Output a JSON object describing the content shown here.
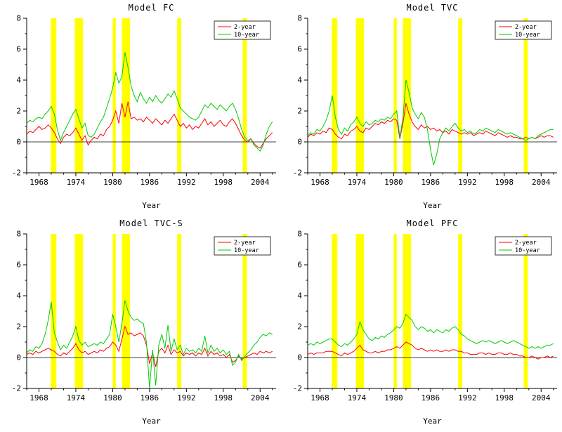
{
  "figure": {
    "xlabel": "Year"
  },
  "colors": {
    "band": "#ffff00",
    "axis": "#000000",
    "two_year": "#ff0000",
    "ten_year": "#00cc00",
    "background": "#ffffff"
  },
  "chart_data": [
    {
      "type": "line",
      "title": "Model FC",
      "xlabel": "Year",
      "ylabel": "",
      "xlim": [
        1966,
        2006.6
      ],
      "ylim": [
        -2,
        8
      ],
      "xticks": [
        1968,
        1974,
        1980,
        1986,
        1992,
        1998,
        2004
      ],
      "yticks": [
        -2,
        0,
        2,
        4,
        6,
        8
      ],
      "legend_position": "top-right",
      "recession_bands": [
        [
          1969.92,
          1970.83
        ],
        [
          1973.83,
          1975.17
        ],
        [
          1980.0,
          1980.5
        ],
        [
          1981.5,
          1982.83
        ],
        [
          1990.5,
          1991.17
        ],
        [
          2001.17,
          2001.83
        ]
      ],
      "x_start": 1966,
      "x_step": 0.5,
      "series": [
        {
          "name": "2-year",
          "color": "#ff0000",
          "values": [
            0.5,
            0.7,
            0.6,
            0.8,
            1.0,
            0.8,
            0.9,
            1.1,
            0.9,
            0.6,
            0.2,
            -0.1,
            0.3,
            0.5,
            0.4,
            0.6,
            0.9,
            0.5,
            0.1,
            0.4,
            -0.2,
            0.1,
            0.3,
            0.2,
            0.5,
            0.4,
            0.8,
            1.0,
            1.4,
            2.0,
            1.2,
            2.5,
            1.6,
            2.6,
            1.5,
            1.6,
            1.4,
            1.5,
            1.3,
            1.6,
            1.4,
            1.2,
            1.5,
            1.3,
            1.1,
            1.4,
            1.2,
            1.5,
            1.8,
            1.4,
            1.0,
            1.2,
            0.9,
            1.1,
            0.8,
            1.0,
            0.9,
            1.2,
            1.5,
            1.1,
            1.3,
            1.0,
            1.2,
            1.4,
            1.1,
            1.0,
            1.3,
            1.5,
            1.2,
            0.8,
            0.4,
            0.1,
            0.0,
            0.2,
            -0.1,
            -0.3,
            -0.4,
            -0.1,
            0.2,
            0.4,
            0.6
          ]
        },
        {
          "name": "10-year",
          "color": "#00cc00",
          "values": [
            1.2,
            1.4,
            1.3,
            1.5,
            1.6,
            1.5,
            1.8,
            2.0,
            2.3,
            1.8,
            0.8,
            0.1,
            0.6,
            1.0,
            1.4,
            1.8,
            2.1,
            1.5,
            0.9,
            1.2,
            0.4,
            0.3,
            0.5,
            0.9,
            1.3,
            1.6,
            2.2,
            2.8,
            3.5,
            4.5,
            3.8,
            4.2,
            5.8,
            4.8,
            3.6,
            3.0,
            2.6,
            3.2,
            2.8,
            2.5,
            2.9,
            2.6,
            3.0,
            2.7,
            2.5,
            2.8,
            3.1,
            2.9,
            3.3,
            2.8,
            2.2,
            2.0,
            1.8,
            1.6,
            1.5,
            1.4,
            1.6,
            2.0,
            2.4,
            2.2,
            2.5,
            2.3,
            2.1,
            2.4,
            2.2,
            2.0,
            2.3,
            2.5,
            2.1,
            1.5,
            0.8,
            0.3,
            0.1,
            0.2,
            -0.2,
            -0.4,
            -0.6,
            -0.2,
            0.5,
            1.0,
            1.3
          ]
        }
      ]
    },
    {
      "type": "line",
      "title": "Model TVC",
      "xlabel": "Year",
      "ylabel": "",
      "xlim": [
        1966,
        2006.6
      ],
      "ylim": [
        -2,
        8
      ],
      "xticks": [
        1968,
        1974,
        1980,
        1986,
        1992,
        1998,
        2004
      ],
      "yticks": [
        -2,
        0,
        2,
        4,
        6,
        8
      ],
      "legend_position": "top-right",
      "recession_bands": [
        [
          1969.92,
          1970.83
        ],
        [
          1973.83,
          1975.17
        ],
        [
          1980.0,
          1980.5
        ],
        [
          1981.5,
          1982.83
        ],
        [
          1990.5,
          1991.17
        ],
        [
          2001.17,
          2001.83
        ]
      ],
      "x_start": 1966,
      "x_step": 0.5,
      "series": [
        {
          "name": "2-year",
          "color": "#ff0000",
          "values": [
            0.3,
            0.5,
            0.4,
            0.6,
            0.5,
            0.7,
            0.6,
            0.9,
            0.8,
            0.5,
            0.3,
            0.2,
            0.5,
            0.4,
            0.7,
            0.8,
            1.0,
            0.7,
            0.6,
            0.9,
            0.8,
            1.0,
            1.2,
            1.1,
            1.3,
            1.2,
            1.4,
            1.3,
            1.5,
            1.4,
            0.2,
            1.2,
            2.5,
            1.8,
            1.3,
            1.0,
            0.8,
            1.1,
            0.9,
            1.0,
            0.8,
            0.9,
            0.7,
            0.8,
            0.6,
            0.7,
            0.5,
            0.8,
            0.7,
            0.6,
            0.5,
            0.6,
            0.5,
            0.6,
            0.4,
            0.5,
            0.6,
            0.5,
            0.7,
            0.6,
            0.5,
            0.4,
            0.6,
            0.5,
            0.4,
            0.3,
            0.4,
            0.3,
            0.3,
            0.2,
            0.2,
            0.3,
            0.2,
            0.3,
            0.2,
            0.3,
            0.4,
            0.3,
            0.4,
            0.4,
            0.3
          ]
        },
        {
          "name": "10-year",
          "color": "#00cc00",
          "values": [
            0.4,
            0.6,
            0.5,
            0.8,
            0.7,
            1.0,
            1.4,
            2.0,
            3.0,
            1.6,
            0.8,
            0.5,
            0.9,
            0.7,
            1.1,
            1.3,
            1.6,
            1.2,
            1.0,
            1.3,
            1.1,
            1.2,
            1.4,
            1.3,
            1.5,
            1.4,
            1.6,
            1.5,
            1.8,
            2.0,
            0.3,
            1.5,
            4.0,
            3.2,
            2.2,
            1.8,
            1.5,
            1.9,
            1.6,
            0.8,
            -0.5,
            -1.5,
            -0.8,
            0.2,
            0.6,
            0.9,
            0.7,
            1.0,
            1.2,
            0.9,
            0.7,
            0.8,
            0.6,
            0.7,
            0.5,
            0.6,
            0.8,
            0.7,
            0.9,
            0.8,
            0.7,
            0.6,
            0.8,
            0.7,
            0.6,
            0.5,
            0.6,
            0.5,
            0.4,
            0.3,
            0.2,
            0.1,
            0.2,
            0.3,
            0.2,
            0.4,
            0.5,
            0.6,
            0.7,
            0.8,
            0.8
          ]
        }
      ]
    },
    {
      "type": "line",
      "title": "Model TVC-S",
      "xlabel": "Year",
      "ylabel": "",
      "xlim": [
        1966,
        2006.6
      ],
      "ylim": [
        -2,
        8
      ],
      "xticks": [
        1968,
        1974,
        1980,
        1986,
        1992,
        1998,
        2004
      ],
      "yticks": [
        -2,
        0,
        2,
        4,
        6,
        8
      ],
      "legend_position": "top-right",
      "recession_bands": [
        [
          1969.92,
          1970.83
        ],
        [
          1973.83,
          1975.17
        ],
        [
          1980.0,
          1980.5
        ],
        [
          1981.5,
          1982.83
        ],
        [
          1990.5,
          1991.17
        ],
        [
          2001.17,
          2001.83
        ]
      ],
      "x_start": 1966,
      "x_step": 0.5,
      "series": [
        {
          "name": "2-year",
          "color": "#ff0000",
          "values": [
            0.2,
            0.3,
            0.2,
            0.4,
            0.3,
            0.4,
            0.5,
            0.6,
            0.5,
            0.4,
            0.2,
            0.1,
            0.3,
            0.2,
            0.4,
            0.6,
            0.9,
            0.5,
            0.3,
            0.4,
            0.2,
            0.3,
            0.4,
            0.3,
            0.5,
            0.4,
            0.6,
            0.7,
            1.0,
            0.8,
            0.4,
            1.2,
            2.0,
            1.5,
            1.6,
            1.4,
            1.5,
            1.6,
            1.4,
            0.8,
            -0.4,
            0.3,
            -0.6,
            0.4,
            0.6,
            0.3,
            0.8,
            0.2,
            0.5,
            0.3,
            0.4,
            0.1,
            0.3,
            0.2,
            0.3,
            0.1,
            0.3,
            0.2,
            0.6,
            0.1,
            0.4,
            0.2,
            0.3,
            0.1,
            0.2,
            0.0,
            0.2,
            -0.3,
            -0.2,
            0.1,
            -0.1,
            0.0,
            0.1,
            0.2,
            0.3,
            0.2,
            0.4,
            0.3,
            0.4,
            0.3,
            0.4
          ]
        },
        {
          "name": "10-year",
          "color": "#00cc00",
          "values": [
            0.3,
            0.5,
            0.4,
            0.7,
            0.6,
            0.9,
            1.5,
            2.4,
            3.6,
            1.6,
            1.0,
            0.5,
            0.8,
            0.6,
            1.0,
            1.4,
            2.0,
            1.1,
            0.8,
            1.0,
            0.7,
            0.8,
            0.9,
            0.8,
            1.0,
            0.9,
            1.2,
            1.5,
            2.8,
            2.0,
            1.0,
            2.2,
            3.7,
            3.0,
            2.6,
            2.4,
            2.5,
            2.3,
            2.2,
            1.0,
            -2.0,
            0.5,
            -1.8,
            0.8,
            1.5,
            0.6,
            2.1,
            0.4,
            1.2,
            0.5,
            0.8,
            0.2,
            0.6,
            0.4,
            0.5,
            0.3,
            0.6,
            0.4,
            1.4,
            0.3,
            0.8,
            0.4,
            0.6,
            0.3,
            0.5,
            0.2,
            0.4,
            -0.5,
            -0.3,
            0.2,
            -0.2,
            0.1,
            0.3,
            0.5,
            0.8,
            1.0,
            1.3,
            1.5,
            1.4,
            1.6,
            1.5
          ]
        }
      ]
    },
    {
      "type": "line",
      "title": "Model PFC",
      "xlabel": "Year",
      "ylabel": "",
      "xlim": [
        1966,
        2006.6
      ],
      "ylim": [
        -2,
        8
      ],
      "xticks": [
        1968,
        1974,
        1980,
        1986,
        1992,
        1998,
        2004
      ],
      "yticks": [
        -2,
        0,
        2,
        4,
        6,
        8
      ],
      "legend_position": "top-right",
      "recession_bands": [
        [
          1969.92,
          1970.83
        ],
        [
          1973.83,
          1975.17
        ],
        [
          1980.0,
          1980.5
        ],
        [
          1981.5,
          1982.83
        ],
        [
          1990.5,
          1991.17
        ],
        [
          2001.17,
          2001.83
        ]
      ],
      "x_start": 1966,
      "x_step": 0.5,
      "series": [
        {
          "name": "2-year",
          "color": "#ff0000",
          "values": [
            0.2,
            0.3,
            0.2,
            0.3,
            0.3,
            0.3,
            0.4,
            0.4,
            0.4,
            0.3,
            0.2,
            0.1,
            0.3,
            0.2,
            0.3,
            0.4,
            0.6,
            0.8,
            0.5,
            0.4,
            0.3,
            0.3,
            0.4,
            0.3,
            0.4,
            0.4,
            0.5,
            0.5,
            0.6,
            0.7,
            0.6,
            0.8,
            1.0,
            0.9,
            0.8,
            0.6,
            0.5,
            0.6,
            0.5,
            0.4,
            0.5,
            0.4,
            0.5,
            0.4,
            0.4,
            0.5,
            0.4,
            0.5,
            0.5,
            0.4,
            0.4,
            0.3,
            0.3,
            0.2,
            0.2,
            0.2,
            0.3,
            0.3,
            0.2,
            0.3,
            0.2,
            0.2,
            0.3,
            0.3,
            0.2,
            0.2,
            0.3,
            0.2,
            0.2,
            0.1,
            0.1,
            0.0,
            0.0,
            0.1,
            0.0,
            -0.1,
            0.0,
            0.0,
            0.1,
            0.0,
            0.1
          ]
        },
        {
          "name": "10-year",
          "color": "#00cc00",
          "values": [
            0.8,
            0.9,
            0.8,
            1.0,
            0.9,
            1.0,
            1.1,
            1.2,
            1.2,
            1.0,
            0.8,
            0.7,
            0.9,
            0.8,
            1.0,
            1.2,
            1.5,
            2.3,
            1.8,
            1.5,
            1.2,
            1.1,
            1.3,
            1.2,
            1.4,
            1.3,
            1.5,
            1.6,
            1.8,
            2.0,
            1.9,
            2.2,
            2.8,
            2.6,
            2.4,
            2.0,
            1.8,
            2.0,
            1.9,
            1.7,
            1.8,
            1.6,
            1.8,
            1.7,
            1.6,
            1.8,
            1.7,
            1.9,
            2.0,
            1.8,
            1.5,
            1.4,
            1.2,
            1.1,
            1.0,
            0.9,
            1.0,
            1.1,
            1.0,
            1.1,
            1.0,
            0.9,
            1.0,
            1.1,
            1.0,
            0.9,
            1.0,
            1.1,
            1.0,
            0.9,
            0.8,
            0.7,
            0.6,
            0.7,
            0.6,
            0.7,
            0.6,
            0.7,
            0.8,
            0.8,
            0.9
          ]
        }
      ]
    }
  ]
}
